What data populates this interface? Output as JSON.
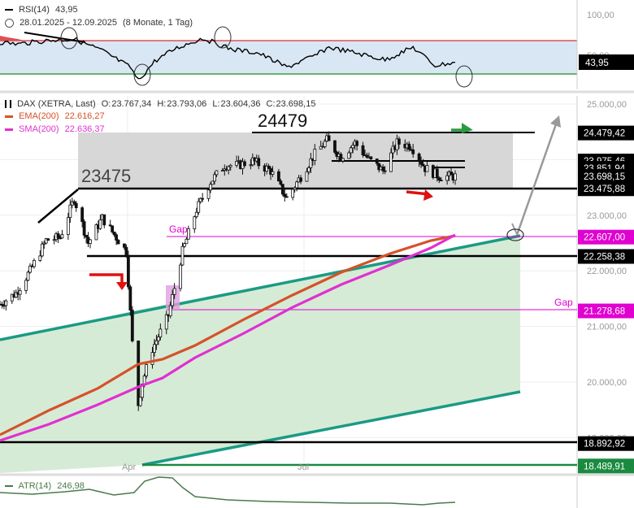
{
  "rsi_panel": {
    "indicator": "RSI(14)",
    "value": "43,95",
    "date_range": "28.01.2025 - 12.09.2025",
    "period": "(8 Monate, 1 Tag)",
    "axis_labels": [
      "100,00",
      "50,00"
    ],
    "current_label": "43,95",
    "upper_level": 70,
    "lower_level": 30,
    "colors": {
      "upper": "#e05050",
      "lower": "#3aa040",
      "band": "#d6e6f5",
      "overbought_fill": "#e05050"
    }
  },
  "price_panel": {
    "title": "DAX (XETRA, Last)",
    "ohlc": {
      "open_label": "O:",
      "open": "23.767,34",
      "high_label": "H:",
      "high": "23.793,06",
      "low_label": "L:",
      "low": "23.604,36",
      "close_label": "C:",
      "close": "23.698,15"
    },
    "ema": {
      "name": "EMA(200)",
      "value": "22.616,27",
      "color": "#d5522a"
    },
    "sma": {
      "name": "SMA(200)",
      "value": "22.636,37",
      "color": "#e030d0"
    },
    "annotations": {
      "high_level": "24479",
      "low_level": "23475",
      "gap_upper": "Gap",
      "gap_lower": "Gap"
    },
    "x_labels": [
      "Apr",
      "Jul"
    ],
    "axis_labels": [
      "25.000,00",
      "24.000,00",
      "23.000,00",
      "22.000,00",
      "21.000,00",
      "20.000,00",
      "19.000,00"
    ],
    "level_boxes": [
      {
        "text": "24.479,42",
        "value": 24479.42,
        "bg": "#000000",
        "fg": "#ffffff"
      },
      {
        "text": "23.975,46",
        "value": 23975.46,
        "bg": "#000000",
        "fg": "#ffffff"
      },
      {
        "text": "23.851,94",
        "value": 23851.94,
        "bg": "#000000",
        "fg": "#ffffff"
      },
      {
        "text": "23.698,15",
        "value": 23698.15,
        "bg": "#000000",
        "fg": "#ffffff"
      },
      {
        "text": "23.475,88",
        "value": 23475.88,
        "bg": "#000000",
        "fg": "#ffffff"
      },
      {
        "text": "22.607,00",
        "value": 22607.0,
        "bg": "#e000d0",
        "fg": "#ffffff"
      },
      {
        "text": "22.258,38",
        "value": 22258.38,
        "bg": "#000000",
        "fg": "#ffffff"
      },
      {
        "text": "21.278,68",
        "value": 21278.68,
        "bg": "#e000d0",
        "fg": "#ffffff"
      },
      {
        "text": "18.892,92",
        "value": 18892.92,
        "bg": "#000000",
        "fg": "#ffffff"
      },
      {
        "text": "18.489,91",
        "value": 18489.91,
        "bg": "#1a8a40",
        "fg": "#ffffff"
      }
    ]
  },
  "atr_panel": {
    "indicator": "ATR(14)",
    "value": "246,98",
    "color": "#4a7a4a"
  },
  "chart_data": {
    "type": "line",
    "title": "DAX (XETRA, Last)",
    "xlabel": "",
    "ylabel": "",
    "ylim": [
      18400,
      25100
    ],
    "grid": true,
    "x_range": [
      "28.01.2025",
      "12.09.2025"
    ],
    "x_ticks": [
      "Apr",
      "Jul"
    ],
    "y_ticks": [
      19000,
      20000,
      21000,
      22000,
      23000,
      24000,
      25000
    ],
    "close_path": [
      [
        "2025-01-28",
        21400
      ],
      [
        "2025-02-05",
        21600
      ],
      [
        "2025-02-12",
        22000
      ],
      [
        "2025-02-20",
        22550
      ],
      [
        "2025-02-27",
        22600
      ],
      [
        "2025-03-06",
        23300
      ],
      [
        "2025-03-13",
        22500
      ],
      [
        "2025-03-20",
        22950
      ],
      [
        "2025-03-27",
        22600
      ],
      [
        "2025-04-01",
        22350
      ],
      [
        "2025-04-04",
        20700
      ],
      [
        "2025-04-07",
        19600
      ],
      [
        "2025-04-09",
        20000
      ],
      [
        "2025-04-14",
        20600
      ],
      [
        "2025-04-22",
        21200
      ],
      [
        "2025-04-29",
        22350
      ],
      [
        "2025-05-06",
        23100
      ],
      [
        "2025-05-13",
        23600
      ],
      [
        "2025-05-20",
        23900
      ],
      [
        "2025-05-27",
        23900
      ],
      [
        "2025-06-03",
        23980
      ],
      [
        "2025-06-12",
        23800
      ],
      [
        "2025-06-20",
        23300
      ],
      [
        "2025-06-27",
        23700
      ],
      [
        "2025-07-04",
        24100
      ],
      [
        "2025-07-10",
        24350
      ],
      [
        "2025-07-17",
        24050
      ],
      [
        "2025-07-24",
        24300
      ],
      [
        "2025-07-31",
        24000
      ],
      [
        "2025-08-07",
        23800
      ],
      [
        "2025-08-14",
        24300
      ],
      [
        "2025-08-21",
        24250
      ],
      [
        "2025-08-28",
        23850
      ],
      [
        "2025-09-04",
        23700
      ],
      [
        "2025-09-12",
        23698
      ]
    ],
    "series": [
      {
        "name": "EMA(200)",
        "values": [
          [
            "2025-01-28",
            19900
          ],
          [
            "2025-03-06",
            20700
          ],
          [
            "2025-04-09",
            21100
          ],
          [
            "2025-05-13",
            21400
          ],
          [
            "2025-06-20",
            21950
          ],
          [
            "2025-07-31",
            22350
          ],
          [
            "2025-09-12",
            22616
          ]
        ]
      },
      {
        "name": "SMA(200)",
        "values": [
          [
            "2025-01-28",
            19850
          ],
          [
            "2025-03-06",
            20350
          ],
          [
            "2025-04-09",
            20800
          ],
          [
            "2025-05-13",
            21250
          ],
          [
            "2025-06-20",
            21850
          ],
          [
            "2025-07-31",
            22300
          ],
          [
            "2025-09-12",
            22636
          ]
        ]
      }
    ],
    "horizontal_levels": [
      24479.42,
      23975.46,
      23851.94,
      23698.15,
      23475.88,
      22607.0,
      22258.38,
      21278.68,
      18892.92,
      18489.91
    ],
    "rsi_path": [
      [
        "2025-01-28",
        68
      ],
      [
        "2025-02-06",
        66
      ],
      [
        "2025-02-20",
        70
      ],
      [
        "2025-03-06",
        72
      ],
      [
        "2025-03-20",
        58
      ],
      [
        "2025-04-03",
        38
      ],
      [
        "2025-04-07",
        22
      ],
      [
        "2025-04-15",
        45
      ],
      [
        "2025-04-25",
        60
      ],
      [
        "2025-05-09",
        73
      ],
      [
        "2025-05-23",
        60
      ],
      [
        "2025-06-06",
        55
      ],
      [
        "2025-06-20",
        38
      ],
      [
        "2025-07-04",
        52
      ],
      [
        "2025-07-11",
        62
      ],
      [
        "2025-07-25",
        55
      ],
      [
        "2025-08-08",
        47
      ],
      [
        "2025-08-22",
        62
      ],
      [
        "2025-09-02",
        40
      ],
      [
        "2025-09-12",
        43.95
      ]
    ]
  }
}
